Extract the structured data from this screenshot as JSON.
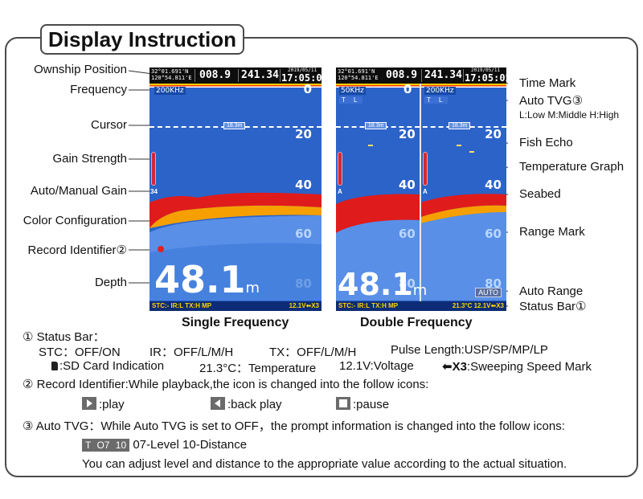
{
  "title": "Display Instruction",
  "left_labels": [
    "Ownship Position",
    "Frequency",
    "Cursor",
    "Gain Strength",
    "Auto/Manual Gain",
    "Color Configuration",
    "Record Identifier②",
    "Depth"
  ],
  "right_labels": [
    "Time Mark",
    "Auto TVG③",
    "Fish Echo",
    "Temperature Graph",
    "Seabed",
    "Range Mark",
    "Auto Range",
    "Status Bar①"
  ],
  "auto_tvg_legend": "L:Low  M:Middle  H:High",
  "single": {
    "lat": "32°01.691'N",
    "lon": "120°54.811'E",
    "value1": "008.9",
    "value2": "241.34",
    "time": "17:05:05",
    "date": "2019/05/11",
    "frequency": "200KHz",
    "range_marks": [
      "0",
      "20",
      "40",
      "60",
      "80"
    ],
    "cursor": "18.3m",
    "gain_value": "34",
    "depth": "48.1",
    "depth_unit": "m",
    "status_left": "STC:-  IR:L  TX:H MP",
    "status_right": "12.1V⬅X3",
    "caption": "Single Frequency"
  },
  "double": {
    "lat": "32°01.691'N",
    "lon": "120°54.811'E",
    "value1": "008.9",
    "value2": "241.34",
    "time": "17:05:05",
    "date": "2019/05/11",
    "frequency_left": "50KHz",
    "frequency_right": "200KHz",
    "tvg_left": "T L",
    "tvg_right": "T L",
    "range_marks": [
      "0",
      "20",
      "40",
      "60",
      "80"
    ],
    "cursor": "18.3m",
    "gain_value": "A",
    "depth": "48.1",
    "depth_unit": "m",
    "auto": "AUTO",
    "status_left": "STC:-  IR:L  TX:H MP",
    "status_right": "21.3°C 12.1V⬅X3",
    "caption": "Double Frequency"
  },
  "notes": {
    "status_title": "① Status Bar：",
    "stc": "STC：OFF/ON",
    "ir": "IR：OFF/L/M/H",
    "tx": "TX：OFF/L/M/H",
    "pulse": "Pulse Length:USP/SP/MP/LP",
    "sd": ":SD Card Indication",
    "temp": "21.3°C：Temperature",
    "volt": "12.1V:Voltage",
    "sweep_mark": "⬅X3",
    "sweep": ":Sweeping Speed Mark",
    "record": "② Record Identifier:While playback,the icon is changed into the follow icons:",
    "play": ":play",
    "back_play": ":back play",
    "pause": ":pause",
    "tvg": "③ Auto TVG：While  Auto TVG is set to  OFF，the prompt information is changed into the follow icons:",
    "tvg_chip": "T O7 10",
    "tvg_desc": "07-Level  10-Distance",
    "adjust": "You can adjust level and distance to the appropriate value according to the actual situation."
  }
}
